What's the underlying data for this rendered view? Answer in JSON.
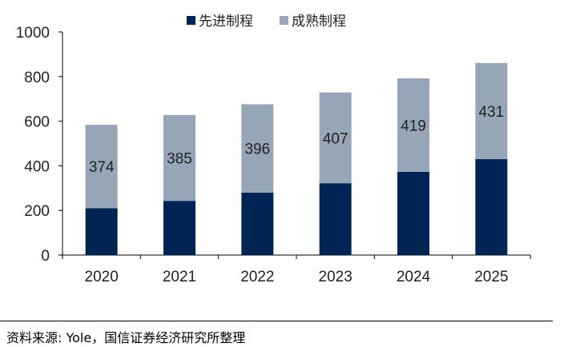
{
  "chart_data": {
    "type": "bar",
    "stacked": true,
    "categories": [
      "2020",
      "2021",
      "2022",
      "2023",
      "2024",
      "2025"
    ],
    "series": [
      {
        "name": "先进制程",
        "color": "#002453",
        "values": [
          210,
          243,
          280,
          322,
          373,
          430
        ]
      },
      {
        "name": "成熟制程",
        "color": "#97A6B7",
        "values": [
          374,
          385,
          396,
          407,
          419,
          431
        ],
        "show_labels": true
      }
    ],
    "ylim": [
      0,
      1000
    ],
    "yticks": [
      0,
      200,
      400,
      600,
      800,
      1000
    ],
    "grid": false,
    "legend_position": "top-center"
  },
  "source_note": "资料来源: Yole，国信证券经济研究所整理"
}
